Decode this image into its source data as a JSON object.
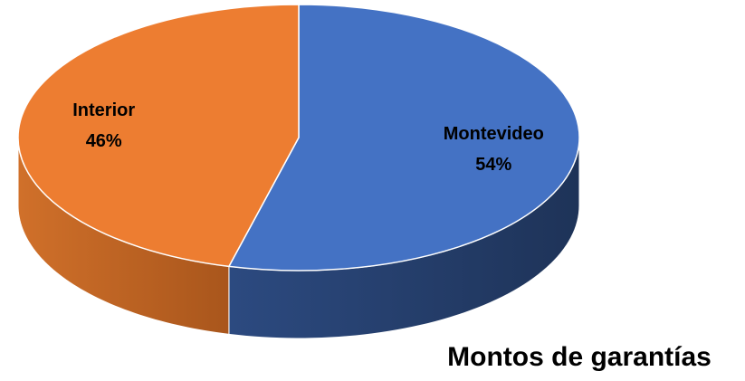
{
  "chart_data": {
    "type": "pie",
    "title": "Montos de garantías",
    "categories": [
      "Montevideo",
      "Interior"
    ],
    "values": [
      54,
      46
    ],
    "value_labels": [
      "54%",
      "46%"
    ],
    "colors": [
      "#4472c4",
      "#ed7d31"
    ],
    "side_colors": [
      [
        "#2c4a80",
        "#1e3358"
      ],
      [
        "#d0702a",
        "#a9561c"
      ]
    ]
  }
}
